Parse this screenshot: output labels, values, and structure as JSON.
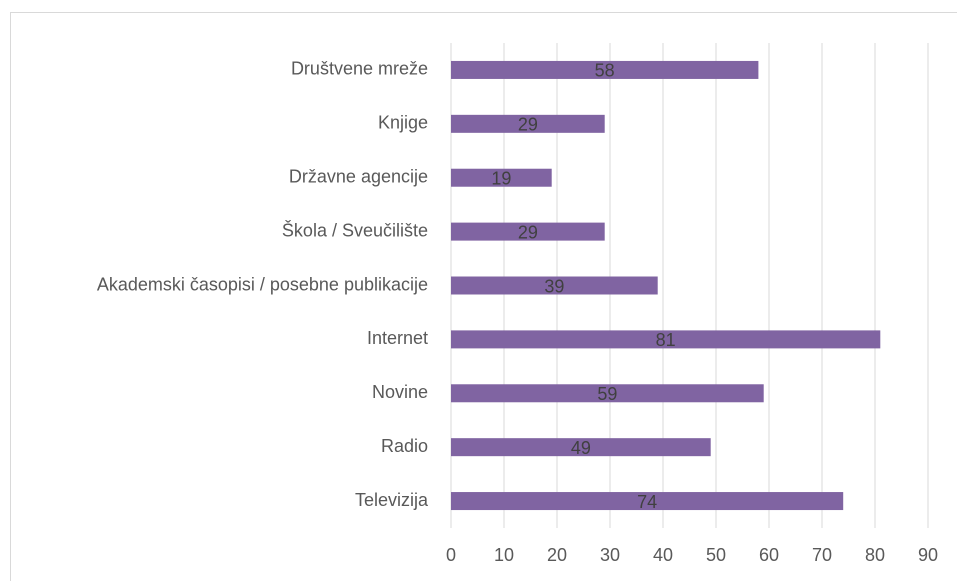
{
  "chart_data": {
    "type": "barh",
    "categories": [
      "Društvene mreže",
      "Knjige",
      "Državne agencije",
      "Škola / Sveučilište",
      "Akademski časopisi / posebne publikacije",
      "Internet",
      "Novine",
      "Radio",
      "Televizija"
    ],
    "values": [
      58,
      29,
      19,
      29,
      39,
      81,
      59,
      49,
      74
    ],
    "color": "#8064a2",
    "xlim": [
      0,
      90
    ],
    "xticks": [
      0,
      10,
      20,
      30,
      40,
      50,
      60,
      70,
      80,
      90
    ],
    "grid": true
  }
}
